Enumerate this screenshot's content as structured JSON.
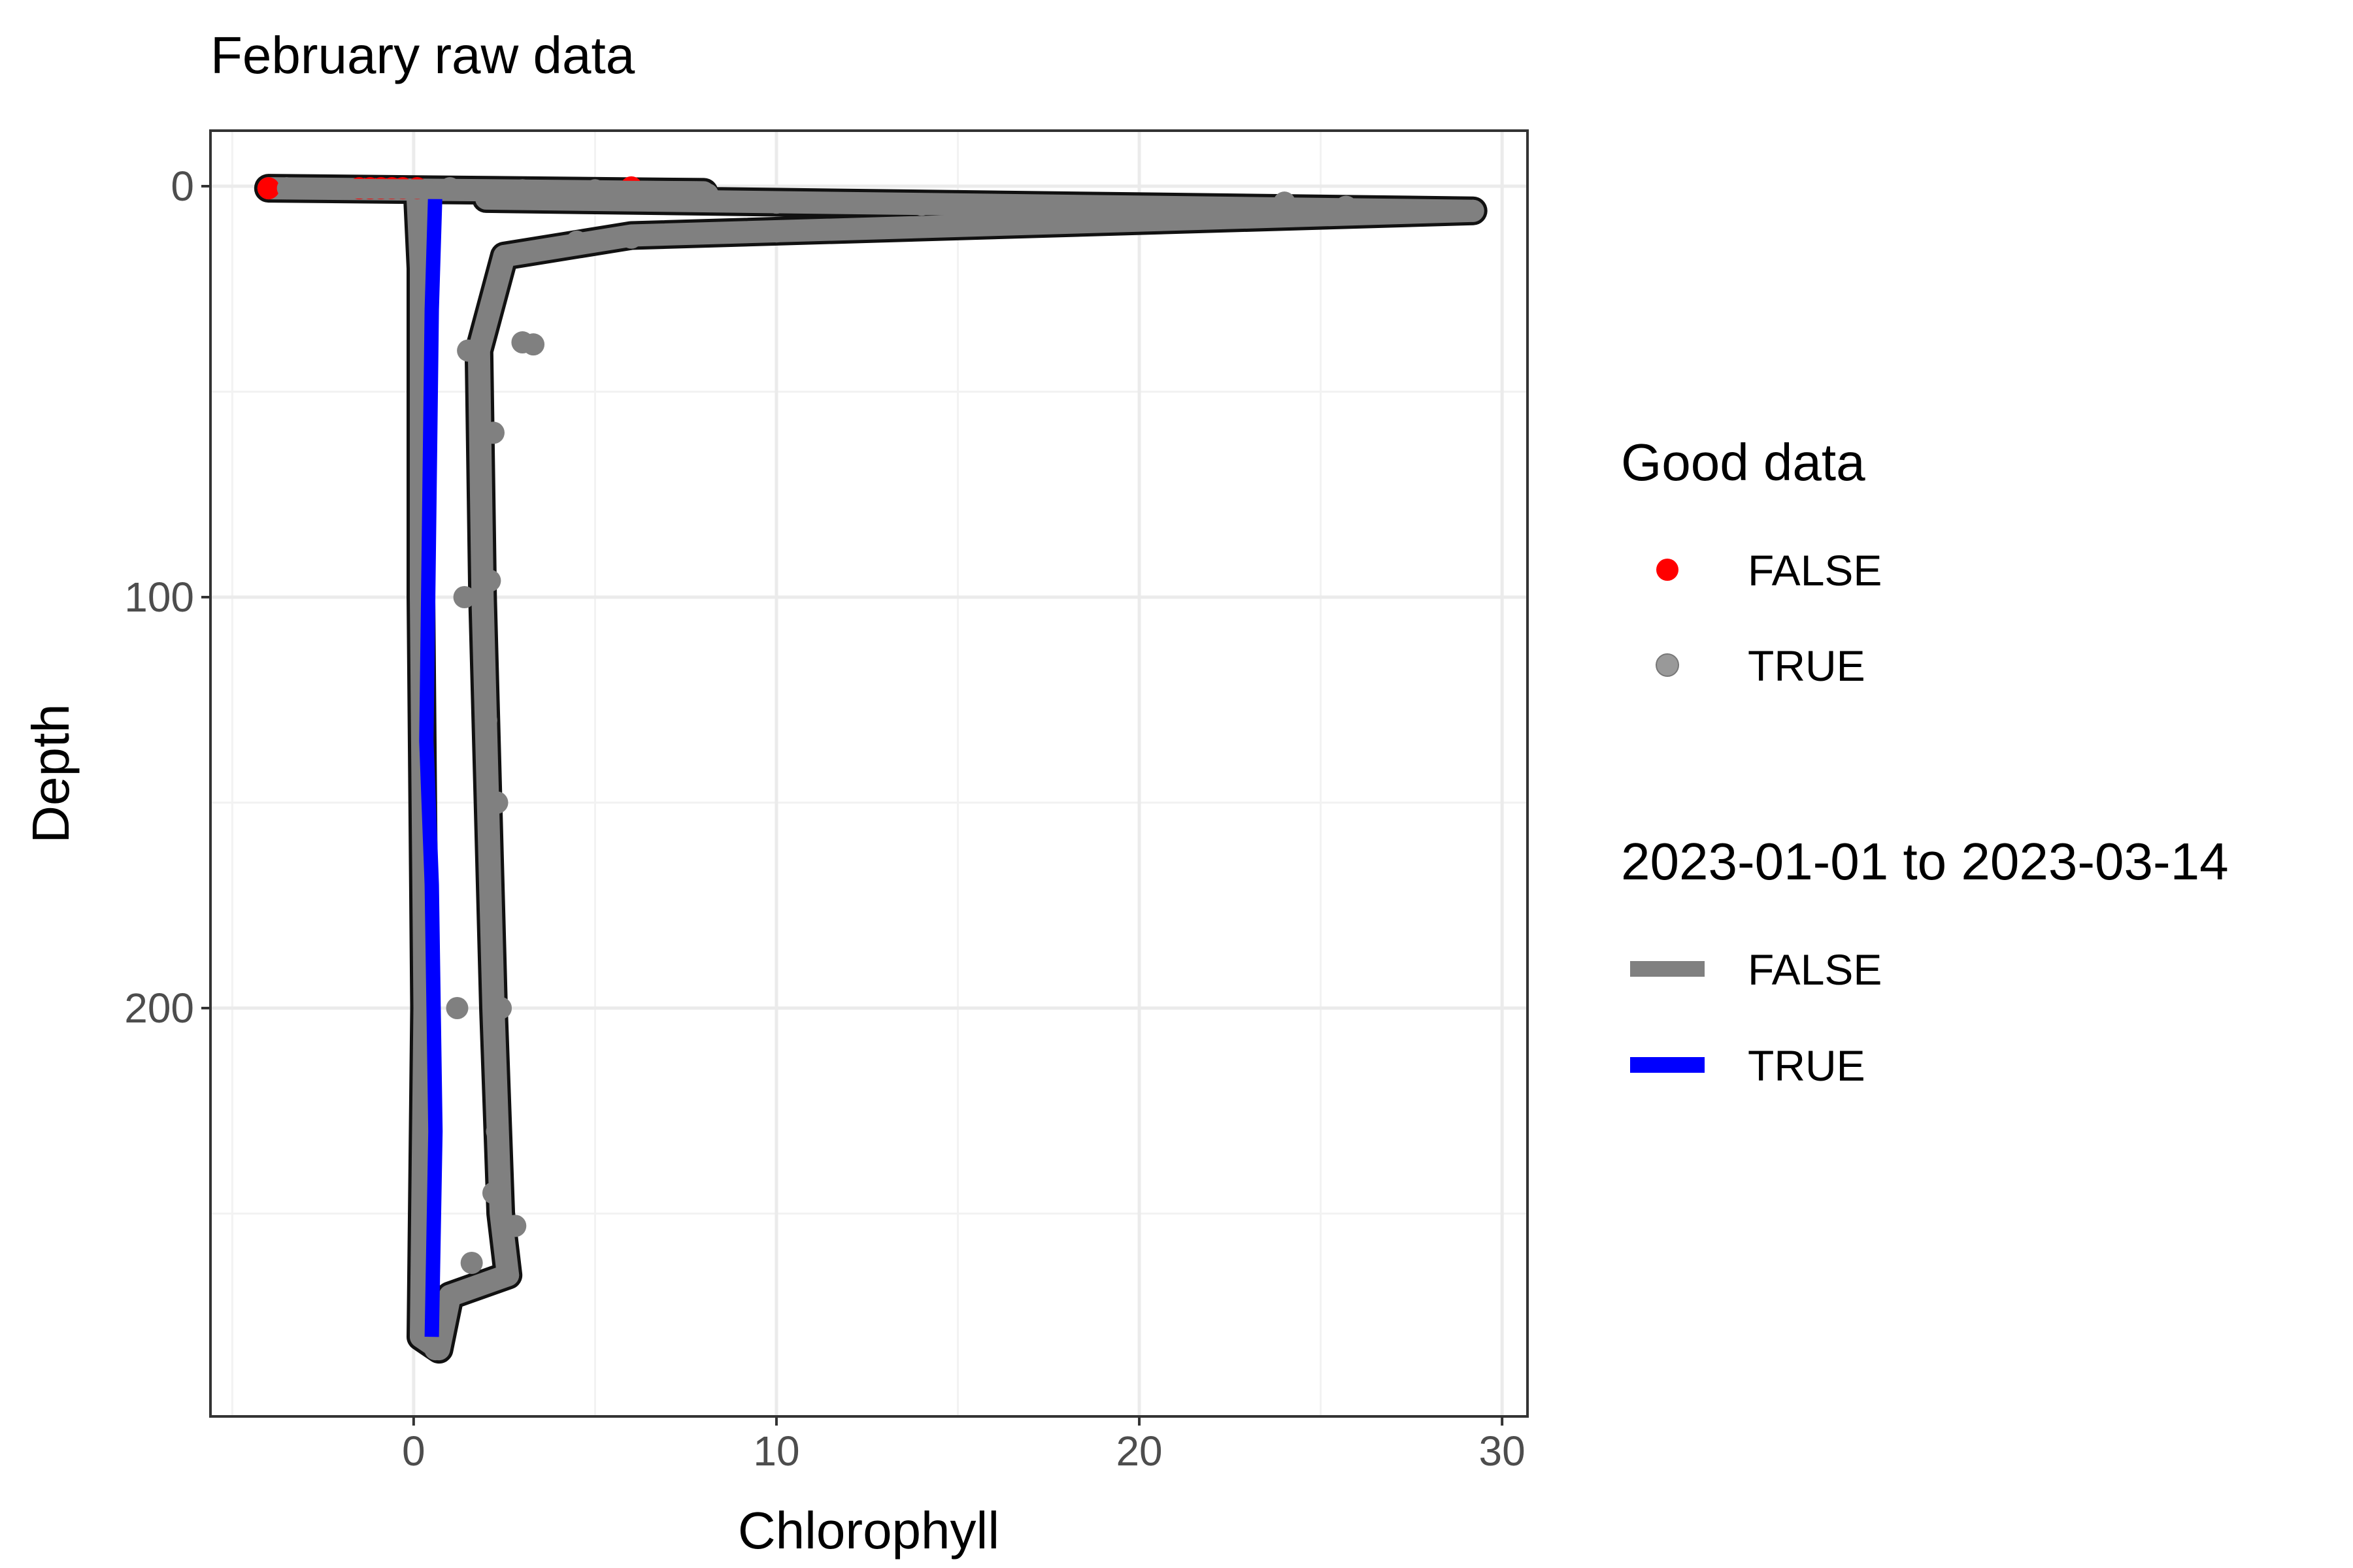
{
  "chart_data": {
    "type": "scatter",
    "title": "February raw data",
    "xlabel": "Chlorophyll",
    "ylabel": "Depth",
    "xlim": [
      -5.6,
      30.7
    ],
    "ylim": [
      0,
      300
    ],
    "y_reversed": true,
    "x_ticks": [
      0,
      10,
      20,
      30
    ],
    "x_tick_labels": [
      "0",
      "10",
      "20",
      "30"
    ],
    "y_ticks": [
      0,
      100,
      200
    ],
    "y_tick_labels": [
      "0",
      "100",
      "200"
    ],
    "grid": true,
    "legend_position": "right",
    "colors": {
      "false_point": "#ff0000",
      "true_point": "#808080",
      "false_line": "#808080",
      "true_line": "#0000ff",
      "outline": "#111111"
    },
    "legends": [
      {
        "title": "Good data",
        "type": "point",
        "entries": [
          {
            "label": "FALSE",
            "color": "#ff0000"
          },
          {
            "label": "TRUE",
            "color": "#999999"
          }
        ]
      },
      {
        "title": "2023-01-01 to 2023-03-14",
        "type": "line",
        "entries": [
          {
            "label": "FALSE",
            "color": "#808080"
          },
          {
            "label": "TRUE",
            "color": "#0000ff"
          }
        ]
      }
    ],
    "series": [
      {
        "name": "FALSE",
        "legend": "Good data",
        "values": [
          {
            "x": -4.0,
            "y": 0.5
          },
          {
            "x": -1.5,
            "y": 0.5
          },
          {
            "x": -1.2,
            "y": 0.5
          },
          {
            "x": -0.9,
            "y": 0.5
          },
          {
            "x": -0.6,
            "y": 0.5
          },
          {
            "x": -0.3,
            "y": 0.5
          },
          {
            "x": 0.1,
            "y": 0.5
          },
          {
            "x": 6.0,
            "y": 0.3
          }
        ]
      },
      {
        "name": "TRUE",
        "legend": "Good data",
        "values": [
          {
            "x": -3.5,
            "y": 0.5
          },
          {
            "x": 1.0,
            "y": 0.5
          },
          {
            "x": 3.0,
            "y": 1.0
          },
          {
            "x": 5.0,
            "y": 1.0
          },
          {
            "x": 7.8,
            "y": 1.5
          },
          {
            "x": 8.1,
            "y": 2.0
          },
          {
            "x": 6.5,
            "y": 3.5
          },
          {
            "x": 10.0,
            "y": 4.0
          },
          {
            "x": 14.0,
            "y": 4.5
          },
          {
            "x": 18.0,
            "y": 5.0
          },
          {
            "x": 22.7,
            "y": 5.5
          },
          {
            "x": 24.0,
            "y": 4.0
          },
          {
            "x": 25.7,
            "y": 5.0
          },
          {
            "x": 29.2,
            "y": 6.0
          },
          {
            "x": 22.7,
            "y": 6.5
          },
          {
            "x": 16.0,
            "y": 8.0
          },
          {
            "x": 10.0,
            "y": 11.0
          },
          {
            "x": 6.0,
            "y": 12.5
          },
          {
            "x": 4.5,
            "y": 13.5
          },
          {
            "x": 2.5,
            "y": 17.0
          },
          {
            "x": 3.0,
            "y": 38.0
          },
          {
            "x": 3.3,
            "y": 38.5
          },
          {
            "x": 2.2,
            "y": 60.0
          },
          {
            "x": 2.1,
            "y": 96.0
          },
          {
            "x": 2.0,
            "y": 130.0
          },
          {
            "x": 2.3,
            "y": 150.0
          },
          {
            "x": 2.4,
            "y": 200.0
          },
          {
            "x": 2.3,
            "y": 230.0
          },
          {
            "x": 2.2,
            "y": 245.0
          },
          {
            "x": 2.8,
            "y": 253.0
          },
          {
            "x": 2.6,
            "y": 265.0
          },
          {
            "x": 1.6,
            "y": 262.0
          },
          {
            "x": 1.0,
            "y": 270.0
          },
          {
            "x": 0.6,
            "y": 283.0
          },
          {
            "x": 0.3,
            "y": 275.0
          },
          {
            "x": 1.2,
            "y": 200.0
          },
          {
            "x": 1.4,
            "y": 100.0
          },
          {
            "x": 1.5,
            "y": 40.0
          }
        ]
      },
      {
        "name": "FALSE",
        "legend": "2023-01-01 to 2023-03-14",
        "type": "line",
        "values": [
          {
            "x": -4.0,
            "y": 0.5
          },
          {
            "x": 8.0,
            "y": 1.5
          },
          {
            "x": 2.0,
            "y": 3.0
          },
          {
            "x": 29.2,
            "y": 6.0
          },
          {
            "x": 6.0,
            "y": 12.0
          },
          {
            "x": 2.5,
            "y": 17.0
          },
          {
            "x": 1.8,
            "y": 40.0
          },
          {
            "x": 1.9,
            "y": 100.0
          },
          {
            "x": 2.2,
            "y": 200.0
          },
          {
            "x": 2.4,
            "y": 250.0
          },
          {
            "x": 2.6,
            "y": 265.0
          },
          {
            "x": 1.0,
            "y": 270.0
          },
          {
            "x": 0.7,
            "y": 283.0
          },
          {
            "x": 0.2,
            "y": 280.0
          },
          {
            "x": 0.3,
            "y": 200.0
          },
          {
            "x": 0.2,
            "y": 100.0
          },
          {
            "x": 0.2,
            "y": 20.0
          },
          {
            "x": 0.1,
            "y": 1.0
          }
        ]
      },
      {
        "name": "TRUE",
        "legend": "2023-01-01 to 2023-03-14",
        "type": "line",
        "values": [
          {
            "x": 0.6,
            "y": 0.5
          },
          {
            "x": 0.5,
            "y": 30.0
          },
          {
            "x": 0.4,
            "y": 100.0
          },
          {
            "x": 0.35,
            "y": 135.0
          },
          {
            "x": 0.5,
            "y": 170.0
          },
          {
            "x": 0.6,
            "y": 230.0
          },
          {
            "x": 0.5,
            "y": 280.0
          }
        ]
      }
    ]
  }
}
